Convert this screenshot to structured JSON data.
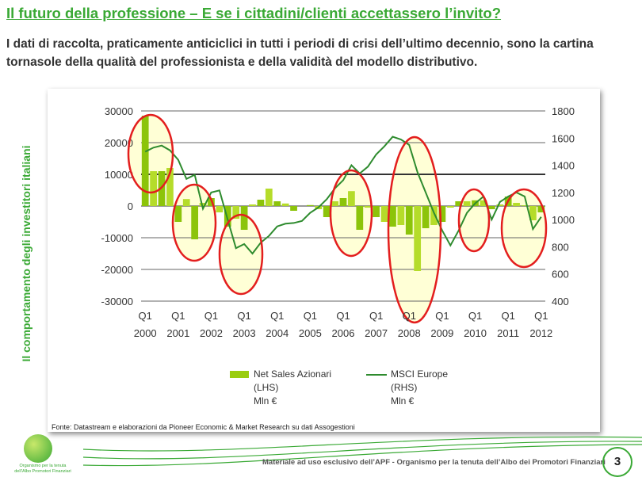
{
  "header": {
    "title": "Il futuro della professione – E se i cittadini/clienti accettassero l’invito?",
    "subtitle": "I dati di raccolta, praticamente anticiclici in tutti i periodi di crisi dell’ultimo decennio, sono la cartina tornasole della qualità del professionista e della validità del modello distributivo."
  },
  "side_title": "Il comportamento degli investitori italiani",
  "chart_data": {
    "type": "bar",
    "title": "",
    "categories_years": [
      "2000",
      "2001",
      "2002",
      "2003",
      "2004",
      "2005",
      "2006",
      "2007",
      "2008",
      "2009",
      "2010",
      "2011",
      "2012"
    ],
    "quarter_label": "Q1",
    "left_ticks": [
      30000,
      20000,
      10000,
      0,
      -10000,
      -20000,
      -30000
    ],
    "right_ticks": [
      1800,
      1600,
      1400,
      1200,
      1000,
      800,
      600,
      400
    ],
    "ylim": [
      -30000,
      30000
    ],
    "y2lim": [
      400,
      1800
    ],
    "series": [
      {
        "name": "Net Sales Azionari (LHS) Mln €",
        "type": "bar",
        "color": "#9acd0f",
        "values": [
          28500,
          11000,
          11000,
          12000,
          -5000,
          2200,
          -10500,
          1000,
          2500,
          -2000,
          -6500,
          -4000,
          -7500,
          500,
          2000,
          5500,
          1500,
          800,
          -1500,
          0,
          300,
          -1000,
          -3500,
          1500,
          2500,
          4700,
          -7500,
          -500,
          -3500,
          -5000,
          -6500,
          -6000,
          -9000,
          -20500,
          -7000,
          -6000,
          -5000,
          -500,
          1500,
          1500,
          1800,
          1800,
          -1000,
          500,
          3000,
          1000,
          200,
          -4500,
          -2000
        ]
      },
      {
        "name": "MSCI Europe (RHS) Mln €",
        "type": "line",
        "color": "#2e8b2e",
        "values": [
          1500,
          1530,
          1545,
          1510,
          1440,
          1300,
          1330,
          1080,
          1200,
          1215,
          1000,
          790,
          820,
          750,
          830,
          880,
          950,
          970,
          975,
          990,
          1050,
          1090,
          1150,
          1230,
          1290,
          1400,
          1340,
          1390,
          1480,
          1540,
          1610,
          1590,
          1550,
          1350,
          1200,
          1050,
          920,
          810,
          920,
          1050,
          1120,
          1170,
          1000,
          1130,
          1170,
          1200,
          1170,
          930,
          1020
        ]
      }
    ],
    "legend": {
      "bar": [
        "Net Sales Azionari",
        "(LHS)",
        "Mln €"
      ],
      "line": [
        "MSCI Europe",
        "(RHS)",
        "Mln €"
      ],
      "position": "bottom"
    }
  },
  "source": "Fonte: Datastream e elaborazioni da Pioneer Economic & Market Research su dati Assogestioni",
  "footer": {
    "text": "Materiale ad uso esclusivo dell’APF - Organismo per la tenuta dell’Albo dei Promotori Finanziari",
    "page": "3",
    "logo_text": "Organismo per la tenuta dell’Albo Promotori Finanziari"
  }
}
